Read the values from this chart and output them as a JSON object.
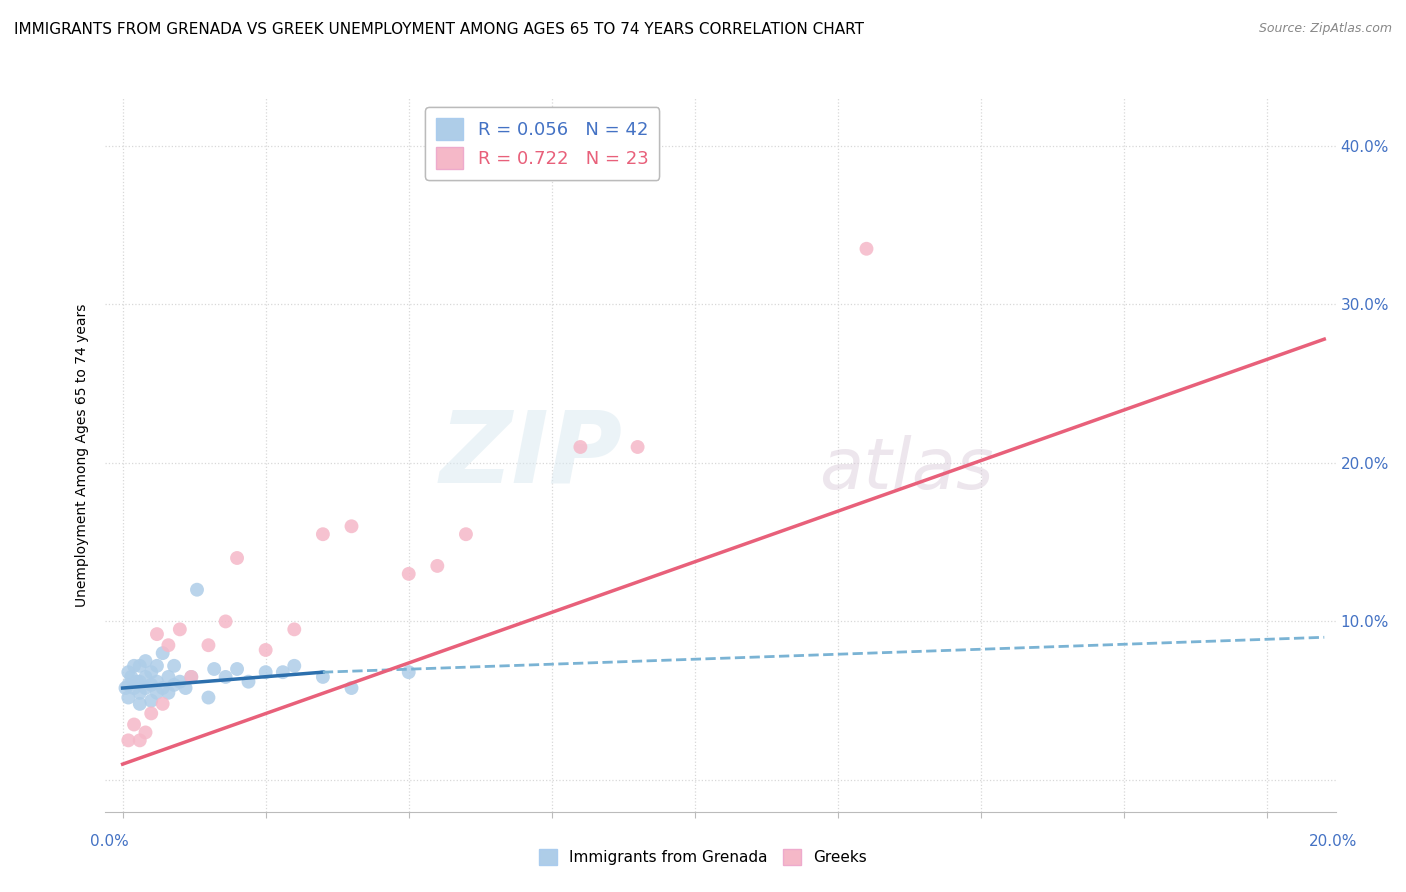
{
  "title": "IMMIGRANTS FROM GRENADA VS GREEK UNEMPLOYMENT AMONG AGES 65 TO 74 YEARS CORRELATION CHART",
  "source": "Source: ZipAtlas.com",
  "ylabel": "Unemployment Among Ages 65 to 74 years",
  "ylim": [
    -0.02,
    0.43
  ],
  "xlim": [
    -0.003,
    0.212
  ],
  "ytick_vals": [
    0.0,
    0.1,
    0.2,
    0.3,
    0.4
  ],
  "ytick_labels": [
    "",
    "10.0%",
    "20.0%",
    "30.0%",
    "40.0%"
  ],
  "xtick_vals": [
    0.0,
    0.025,
    0.05,
    0.075,
    0.1,
    0.125,
    0.15,
    0.175,
    0.2
  ],
  "legend_blue_r": "R = 0.056",
  "legend_blue_n": "N = 42",
  "legend_pink_r": "R = 0.722",
  "legend_pink_n": "N = 23",
  "watermark_zip": "ZIP",
  "watermark_atlas": "atlas",
  "blue_color": "#aecde8",
  "blue_line_color": "#2c6fad",
  "blue_line_dash_color": "#7ab3d4",
  "pink_color": "#f5b8c8",
  "pink_line_color": "#e8607a",
  "blue_scatter_x": [
    0.0005,
    0.001,
    0.001,
    0.001,
    0.0015,
    0.002,
    0.002,
    0.0025,
    0.003,
    0.003,
    0.003,
    0.003,
    0.004,
    0.004,
    0.004,
    0.005,
    0.005,
    0.005,
    0.006,
    0.006,
    0.006,
    0.007,
    0.007,
    0.008,
    0.008,
    0.009,
    0.009,
    0.01,
    0.011,
    0.012,
    0.013,
    0.015,
    0.016,
    0.018,
    0.02,
    0.022,
    0.025,
    0.028,
    0.03,
    0.035,
    0.04,
    0.05
  ],
  "blue_scatter_y": [
    0.058,
    0.052,
    0.06,
    0.068,
    0.065,
    0.058,
    0.072,
    0.062,
    0.048,
    0.055,
    0.062,
    0.072,
    0.058,
    0.065,
    0.075,
    0.05,
    0.06,
    0.068,
    0.055,
    0.062,
    0.072,
    0.058,
    0.08,
    0.055,
    0.065,
    0.06,
    0.072,
    0.062,
    0.058,
    0.065,
    0.12,
    0.052,
    0.07,
    0.065,
    0.07,
    0.062,
    0.068,
    0.068,
    0.072,
    0.065,
    0.058,
    0.068
  ],
  "pink_scatter_x": [
    0.001,
    0.002,
    0.003,
    0.004,
    0.005,
    0.006,
    0.007,
    0.008,
    0.01,
    0.012,
    0.015,
    0.018,
    0.02,
    0.025,
    0.03,
    0.035,
    0.04,
    0.05,
    0.055,
    0.06,
    0.08,
    0.09,
    0.13
  ],
  "pink_scatter_y": [
    0.025,
    0.035,
    0.025,
    0.03,
    0.042,
    0.092,
    0.048,
    0.085,
    0.095,
    0.065,
    0.085,
    0.1,
    0.14,
    0.082,
    0.095,
    0.155,
    0.16,
    0.13,
    0.135,
    0.155,
    0.21,
    0.21,
    0.335
  ],
  "blue_solid_line_x": [
    0.0,
    0.035
  ],
  "blue_solid_line_y": [
    0.058,
    0.068
  ],
  "blue_dash_line_x": [
    0.035,
    0.21
  ],
  "blue_dash_line_y": [
    0.068,
    0.09
  ],
  "pink_line_x": [
    0.0,
    0.21
  ],
  "pink_line_y": [
    0.01,
    0.278
  ],
  "bg_color": "#ffffff",
  "grid_color": "#d8d8d8",
  "title_fontsize": 11,
  "source_fontsize": 9,
  "label_fontsize": 10,
  "tick_color": "#4472c4",
  "tick_fontsize": 11,
  "legend_fontsize": 13
}
